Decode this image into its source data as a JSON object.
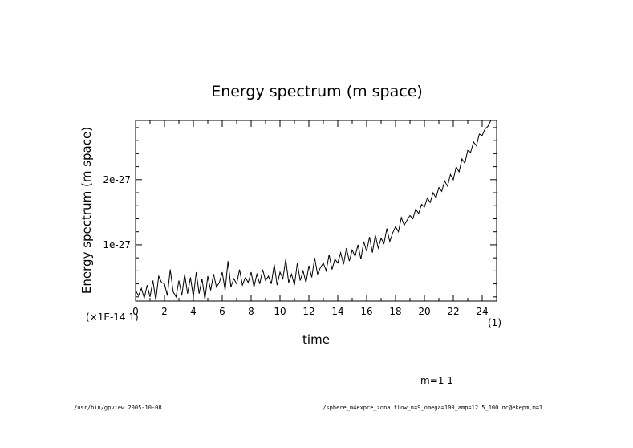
{
  "chart_data": {
    "type": "line",
    "title": "Energy spectrum (m space)",
    "xlabel": "time",
    "ylabel": "Energy spectrum (m space)",
    "x_scale_note": "(×1E-14 1)",
    "x_unit_note": "(1)",
    "xlim": [
      0,
      25
    ],
    "ylim": [
      1.36e-28,
      2.91e-27
    ],
    "x_ticks": [
      0,
      2,
      4,
      6,
      8,
      10,
      12,
      14,
      16,
      18,
      20,
      22,
      24
    ],
    "x_tick_labels": [
      "0",
      "2",
      "4",
      "6",
      "8",
      "10",
      "12",
      "14",
      "16",
      "18",
      "20",
      "22",
      "24"
    ],
    "y_ticks": [
      1e-27,
      2e-27
    ],
    "y_tick_labels": [
      "1e-27",
      "2e-27"
    ],
    "grid": false,
    "series": [
      {
        "name": "m=1",
        "x": [
          0,
          0.2,
          0.4,
          0.6,
          0.8,
          1.0,
          1.2,
          1.4,
          1.6,
          1.8,
          2.0,
          2.2,
          2.4,
          2.6,
          2.8,
          3.0,
          3.2,
          3.4,
          3.6,
          3.8,
          4.0,
          4.2,
          4.4,
          4.6,
          4.8,
          5.0,
          5.2,
          5.4,
          5.6,
          5.8,
          6.0,
          6.2,
          6.4,
          6.6,
          6.8,
          7.0,
          7.2,
          7.4,
          7.6,
          7.8,
          8.0,
          8.2,
          8.4,
          8.6,
          8.8,
          9.0,
          9.2,
          9.4,
          9.6,
          9.8,
          10.0,
          10.2,
          10.4,
          10.6,
          10.8,
          11.0,
          11.2,
          11.4,
          11.6,
          11.8,
          12.0,
          12.2,
          12.4,
          12.6,
          12.8,
          13.0,
          13.2,
          13.4,
          13.6,
          13.8,
          14.0,
          14.2,
          14.4,
          14.6,
          14.8,
          15.0,
          15.2,
          15.4,
          15.6,
          15.8,
          16.0,
          16.2,
          16.4,
          16.6,
          16.8,
          17.0,
          17.2,
          17.4,
          17.6,
          17.8,
          18.0,
          18.2,
          18.4,
          18.6,
          18.8,
          19.0,
          19.2,
          19.4,
          19.6,
          19.8,
          20.0,
          20.2,
          20.4,
          20.6,
          20.8,
          21.0,
          21.2,
          21.4,
          21.6,
          21.8,
          22.0,
          22.2,
          22.4,
          22.6,
          22.8,
          23.0,
          23.2,
          23.4,
          23.6,
          23.8,
          24.0,
          24.2,
          24.4,
          24.6,
          24.8,
          25.0
        ],
        "y": [
          0.3,
          0.22,
          0.33,
          0.18,
          0.38,
          0.2,
          0.45,
          0.15,
          0.52,
          0.42,
          0.4,
          0.22,
          0.62,
          0.28,
          0.2,
          0.45,
          0.22,
          0.55,
          0.25,
          0.5,
          0.2,
          0.58,
          0.25,
          0.48,
          0.16,
          0.52,
          0.3,
          0.55,
          0.35,
          0.42,
          0.58,
          0.3,
          0.75,
          0.35,
          0.48,
          0.4,
          0.62,
          0.38,
          0.5,
          0.42,
          0.58,
          0.35,
          0.55,
          0.4,
          0.62,
          0.45,
          0.52,
          0.4,
          0.7,
          0.38,
          0.58,
          0.48,
          0.78,
          0.42,
          0.55,
          0.38,
          0.72,
          0.45,
          0.6,
          0.42,
          0.68,
          0.5,
          0.8,
          0.55,
          0.65,
          0.72,
          0.6,
          0.85,
          0.62,
          0.78,
          0.72,
          0.88,
          0.7,
          0.95,
          0.75,
          0.92,
          0.82,
          1.0,
          0.78,
          1.05,
          0.9,
          1.12,
          0.88,
          1.15,
          0.95,
          1.1,
          1.02,
          1.25,
          1.05,
          1.18,
          1.28,
          1.2,
          1.42,
          1.3,
          1.38,
          1.45,
          1.4,
          1.55,
          1.48,
          1.62,
          1.58,
          1.72,
          1.65,
          1.8,
          1.72,
          1.88,
          1.82,
          1.98,
          1.9,
          2.08,
          2.0,
          2.2,
          2.12,
          2.32,
          2.25,
          2.45,
          2.42,
          2.58,
          2.52,
          2.7,
          2.68,
          2.78,
          2.82,
          2.92,
          2.95,
          3.0
        ]
      }
    ],
    "annotation": "m=1 1"
  },
  "footer": {
    "left": "/usr/bin/gpview  2005-10-08",
    "right": "./sphere_m4expce_zonalflow_n=9_omega=100_amp=12.5_100.nc@ekepm,m=1"
  }
}
